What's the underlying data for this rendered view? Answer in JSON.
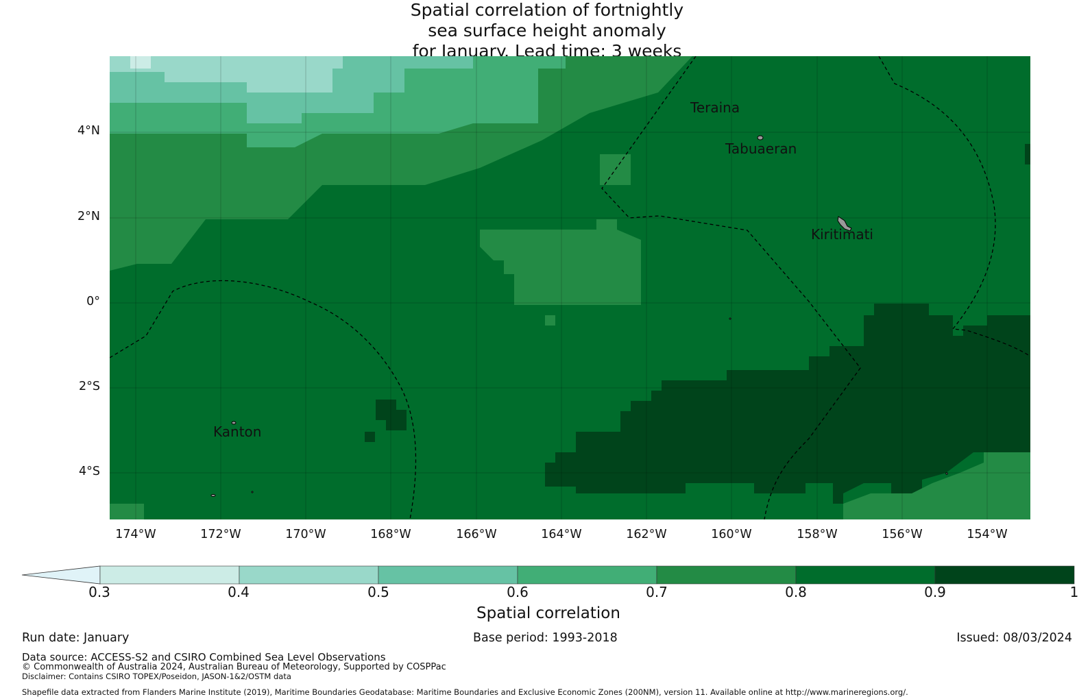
{
  "title": {
    "line1": "Spatial correlation of fortnightly",
    "line2": "sea surface height anomaly",
    "line3": "for January. Lead time: 3 weeks"
  },
  "map": {
    "lat_labels": [
      "4°N",
      "2°N",
      "0°",
      "2°S",
      "4°S"
    ],
    "lon_labels": [
      "174°W",
      "172°W",
      "170°W",
      "168°W",
      "166°W",
      "164°W",
      "162°W",
      "160°W",
      "158°W",
      "156°W",
      "154°W"
    ],
    "extent": {
      "lon": [
        -174.6,
        -153.0
      ],
      "lat": [
        -5.1,
        5.8
      ]
    },
    "places": {
      "teraina": "Teraina",
      "tabuaeran": "Tabuaeran",
      "kiritimati": "Kiritimati",
      "kanton": "Kanton"
    },
    "boundary_style": "dashed black (maritime EEZ boundaries)",
    "grid": true
  },
  "colorbar": {
    "ticks": [
      "0.3",
      "0.4",
      "0.5",
      "0.6",
      "0.7",
      "0.8",
      "0.9",
      "1"
    ],
    "label": "Spatial correlation",
    "extend": "min",
    "colors": [
      "#e0f3f8",
      "#ccece6",
      "#99d8c9",
      "#66c2a4",
      "#41ae76",
      "#238b45",
      "#006d2c",
      "#00441b"
    ]
  },
  "footer": {
    "run_date": "Run date: January",
    "base_period": "Base period: 1993-2018",
    "issued": "Issued: 08/03/2024",
    "data_source": "Data source: ACCESS-S2 and CSIRO Combined Sea Level Observations",
    "copyright": "© Commonwealth of Australia 2024, Australian Bureau of Meteorology, Supported by COSPPac",
    "disclaimer": "Disclaimer: Contains CSIRO TOPEX/Poseidon, JASON-1&2/OSTM data",
    "shapefile": "Shapefile data extracted from Flanders Marine Institute (2019), Maritime Boundaries Geodatabase: Maritime Boundaries and Exclusive Economic Zones (200NM), version 11. Available online at http://www.marineregions.org/."
  }
}
